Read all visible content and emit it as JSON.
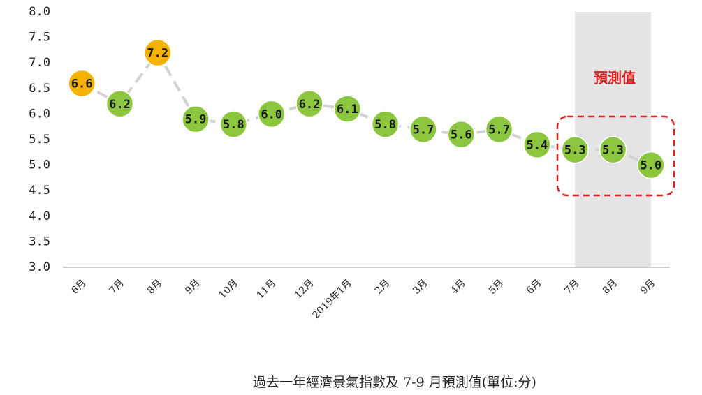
{
  "chart_data": {
    "type": "line",
    "title": "過去一年經濟景氣指數及 7-9 月預測值(單位:分)",
    "annotation": "預測值",
    "categories": [
      "6月",
      "7月",
      "8月",
      "9月",
      "10月",
      "11月",
      "12月",
      "2019年1月",
      "2月",
      "3月",
      "4月",
      "5月",
      "6月",
      "7月",
      "8月",
      "9月"
    ],
    "values": [
      6.6,
      6.2,
      7.2,
      5.9,
      5.8,
      6.0,
      6.2,
      6.1,
      5.8,
      5.7,
      5.6,
      5.7,
      5.4,
      5.3,
      5.3,
      5.0
    ],
    "value_labels": [
      "6.6",
      "6.2",
      "7.2",
      "5.9",
      "5.8",
      "6.0",
      "6.2",
      "6.1",
      "5.8",
      "5.7",
      "5.6",
      "5.7",
      "5.4",
      "5.3",
      "5.3",
      "5.0"
    ],
    "point_colors": [
      "#f5b300",
      "#8cc63f",
      "#f5b300",
      "#8cc63f",
      "#8cc63f",
      "#8cc63f",
      "#8cc63f",
      "#8cc63f",
      "#8cc63f",
      "#8cc63f",
      "#8cc63f",
      "#8cc63f",
      "#8cc63f",
      "#8cc63f",
      "#8cc63f",
      "#8cc63f"
    ],
    "line_color": "#d3d3d3",
    "shade_color": "#e4e4e4",
    "highlight": [
      13,
      14,
      15
    ],
    "ylim": [
      3,
      8
    ],
    "yticks": [
      {
        "value": 3,
        "label": "3.0"
      },
      3.5,
      {
        "value": 4,
        "label": "4.0"
      },
      4.5,
      {
        "value": 5,
        "label": "5.0"
      },
      5.5,
      {
        "value": 6,
        "label": "6.0"
      },
      6.5,
      {
        "value": 7,
        "label": "7.0"
      },
      7.5,
      {
        "value": 8,
        "label": "8.0"
      }
    ],
    "grid": false
  }
}
